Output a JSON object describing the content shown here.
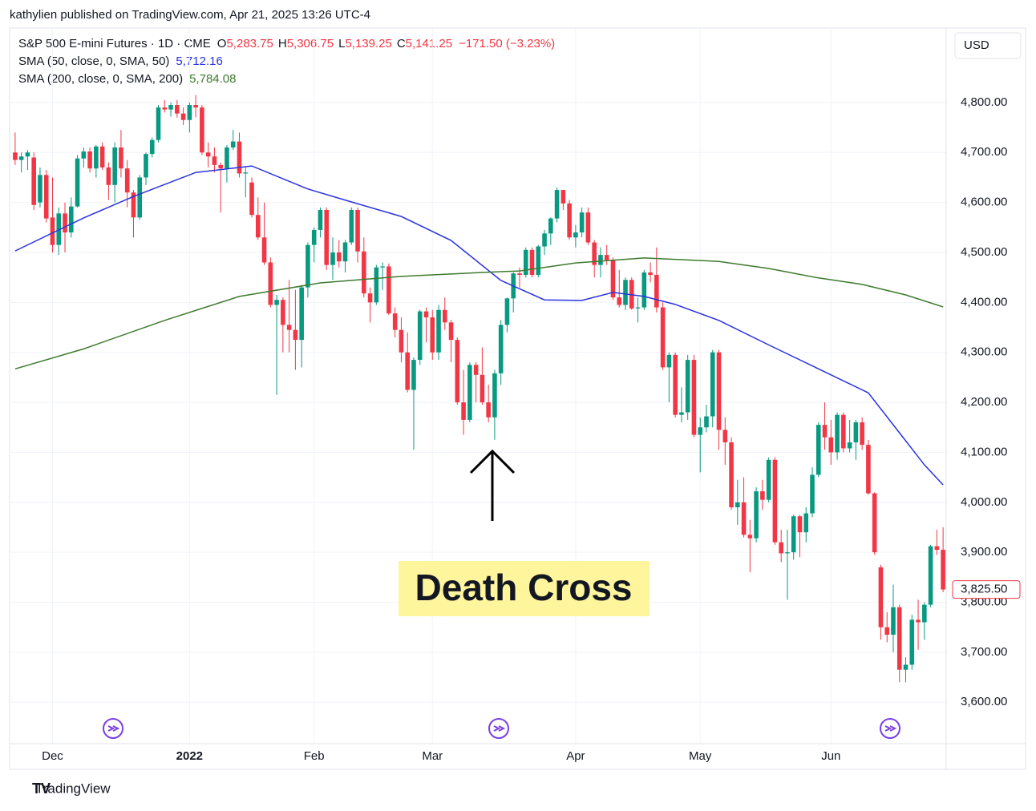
{
  "header": {
    "publisher": "kathylien published on TradingView.com, Apr 21, 2025 13:26 UTC-4"
  },
  "legend": {
    "symbol": "S&P 500 E-mini Futures · 1D · CME",
    "o_label": "O",
    "o": "5,283.75",
    "h_label": "H",
    "h": "5,306.75",
    "l_label": "L",
    "l": "5,139.25",
    "c_label": "C",
    "c": "5,141.25",
    "change": "−171.50 (−3.23%)",
    "sma50_label": "SMA (50, close, 0, SMA, 50)",
    "sma50_value": "5,712.16",
    "sma200_label": "SMA (200, close, 0, SMA, 200)",
    "sma200_value": "5,784.08"
  },
  "currency": "USD",
  "footer": "TradingView",
  "chart_data": {
    "type": "candlestick",
    "annotation": "Death Cross",
    "up_color": "#089981",
    "down_color": "#f23645",
    "ylim": [
      3517,
      4949
    ],
    "yticks": [
      {
        "value": 3600,
        "label": "3,600.00"
      },
      {
        "value": 3700,
        "label": "3,700.00"
      },
      {
        "value": 3800,
        "label": "3,800.00"
      },
      {
        "value": 3900,
        "label": "3,900.00"
      },
      {
        "value": 4000,
        "label": "4,000.00"
      },
      {
        "value": 4100,
        "label": "4,100.00"
      },
      {
        "value": 4200,
        "label": "4,200.00"
      },
      {
        "value": 4300,
        "label": "4,300.00"
      },
      {
        "value": 4400,
        "label": "4,400.00"
      },
      {
        "value": 4500,
        "label": "4,500.00"
      },
      {
        "value": 4600,
        "label": "4,600.00"
      },
      {
        "value": 4700,
        "label": "4,700.00"
      },
      {
        "value": 4800,
        "label": "4,800.00"
      }
    ],
    "xticks": [
      {
        "value": 6,
        "label": "Dec"
      },
      {
        "value": 28,
        "label": "2022"
      },
      {
        "value": 48,
        "label": "Feb"
      },
      {
        "value": 67,
        "label": "Mar"
      },
      {
        "value": 90,
        "label": "Apr"
      },
      {
        "value": 110,
        "label": "May"
      },
      {
        "value": 131,
        "label": "Jun"
      }
    ],
    "last_price": {
      "value": 3825.5,
      "label": "3,825.50"
    },
    "ohlc": [
      [
        4700,
        4740,
        4675,
        4685
      ],
      [
        4685,
        4700,
        4660,
        4692
      ],
      [
        4692,
        4705,
        4665,
        4700
      ],
      [
        4690,
        4700,
        4585,
        4595
      ],
      [
        4600,
        4670,
        4590,
        4655
      ],
      [
        4655,
        4665,
        4560,
        4568
      ],
      [
        4570,
        4650,
        4500,
        4515
      ],
      [
        4515,
        4590,
        4495,
        4578
      ],
      [
        4578,
        4600,
        4500,
        4540
      ],
      [
        4540,
        4610,
        4530,
        4592
      ],
      [
        4592,
        4695,
        4590,
        4688
      ],
      [
        4688,
        4710,
        4670,
        4702
      ],
      [
        4702,
        4710,
        4660,
        4668
      ],
      [
        4668,
        4715,
        4650,
        4712
      ],
      [
        4712,
        4720,
        4665,
        4670
      ],
      [
        4670,
        4680,
        4605,
        4635
      ],
      [
        4635,
        4720,
        4600,
        4710
      ],
      [
        4710,
        4745,
        4650,
        4668
      ],
      [
        4668,
        4685,
        4590,
        4620
      ],
      [
        4620,
        4625,
        4530,
        4570
      ],
      [
        4570,
        4655,
        4565,
        4650
      ],
      [
        4650,
        4700,
        4635,
        4697
      ],
      [
        4697,
        4730,
        4690,
        4725
      ],
      [
        4725,
        4795,
        4720,
        4790
      ],
      [
        4790,
        4805,
        4780,
        4786
      ],
      [
        4786,
        4800,
        4772,
        4795
      ],
      [
        4795,
        4805,
        4770,
        4778
      ],
      [
        4778,
        4790,
        4755,
        4765
      ],
      [
        4765,
        4800,
        4740,
        4795
      ],
      [
        4795,
        4815,
        4770,
        4790
      ],
      [
        4790,
        4795,
        4695,
        4700
      ],
      [
        4700,
        4720,
        4670,
        4692
      ],
      [
        4692,
        4710,
        4660,
        4675
      ],
      [
        4675,
        4680,
        4580,
        4668
      ],
      [
        4668,
        4715,
        4640,
        4710
      ],
      [
        4710,
        4745,
        4705,
        4722
      ],
      [
        4722,
        4740,
        4650,
        4658
      ],
      [
        4658,
        4670,
        4610,
        4660
      ],
      [
        4640,
        4650,
        4570,
        4575
      ],
      [
        4575,
        4610,
        4525,
        4530
      ],
      [
        4530,
        4600,
        4475,
        4480
      ],
      [
        4480,
        4490,
        4390,
        4395
      ],
      [
        4395,
        4415,
        4215,
        4405
      ],
      [
        4405,
        4410,
        4300,
        4355
      ],
      [
        4355,
        4445,
        4300,
        4345
      ],
      [
        4345,
        4425,
        4265,
        4325
      ],
      [
        4325,
        4435,
        4270,
        4430
      ],
      [
        4430,
        4520,
        4410,
        4515
      ],
      [
        4515,
        4550,
        4480,
        4545
      ],
      [
        4545,
        4590,
        4530,
        4585
      ],
      [
        4585,
        4590,
        4465,
        4475
      ],
      [
        4475,
        4530,
        4445,
        4500
      ],
      [
        4500,
        4525,
        4470,
        4482
      ],
      [
        4482,
        4525,
        4460,
        4520
      ],
      [
        4520,
        4590,
        4515,
        4585
      ],
      [
        4585,
        4590,
        4480,
        4502
      ],
      [
        4502,
        4530,
        4410,
        4418
      ],
      [
        4418,
        4430,
        4360,
        4400
      ],
      [
        4400,
        4475,
        4395,
        4470
      ],
      [
        4470,
        4480,
        4425,
        4472
      ],
      [
        4472,
        4478,
        4375,
        4378
      ],
      [
        4378,
        4390,
        4330,
        4345
      ],
      [
        4345,
        4370,
        4280,
        4300
      ],
      [
        4300,
        4340,
        4220,
        4225
      ],
      [
        4225,
        4290,
        4105,
        4285
      ],
      [
        4285,
        4385,
        4275,
        4382
      ],
      [
        4382,
        4390,
        4320,
        4370
      ],
      [
        4370,
        4385,
        4285,
        4300
      ],
      [
        4300,
        4395,
        4285,
        4385
      ],
      [
        4385,
        4410,
        4345,
        4360
      ],
      [
        4360,
        4365,
        4280,
        4325
      ],
      [
        4325,
        4330,
        4195,
        4200
      ],
      [
        4200,
        4265,
        4135,
        4165
      ],
      [
        4165,
        4280,
        4160,
        4275
      ],
      [
        4275,
        4280,
        4200,
        4255
      ],
      [
        4255,
        4310,
        4195,
        4200
      ],
      [
        4200,
        4235,
        4160,
        4170
      ],
      [
        4170,
        4265,
        4125,
        4258
      ],
      [
        4258,
        4365,
        4235,
        4355
      ],
      [
        4355,
        4410,
        4340,
        4408
      ],
      [
        4408,
        4460,
        4380,
        4458
      ],
      [
        4458,
        4470,
        4430,
        4455
      ],
      [
        4455,
        4510,
        4450,
        4505
      ],
      [
        4505,
        4510,
        4450,
        4455
      ],
      [
        4455,
        4515,
        4450,
        4512
      ],
      [
        4512,
        4545,
        4495,
        4538
      ],
      [
        4538,
        4570,
        4515,
        4568
      ],
      [
        4568,
        4630,
        4560,
        4625
      ],
      [
        4625,
        4625,
        4585,
        4598
      ],
      [
        4598,
        4605,
        4525,
        4530
      ],
      [
        4530,
        4555,
        4510,
        4540
      ],
      [
        4540,
        4590,
        4530,
        4580
      ],
      [
        4580,
        4590,
        4515,
        4520
      ],
      [
        4520,
        4525,
        4450,
        4475
      ],
      [
        4475,
        4510,
        4450,
        4495
      ],
      [
        4495,
        4515,
        4475,
        4485
      ],
      [
        4485,
        4490,
        4405,
        4410
      ],
      [
        4410,
        4465,
        4390,
        4395
      ],
      [
        4395,
        4450,
        4385,
        4445
      ],
      [
        4445,
        4450,
        4385,
        4388
      ],
      [
        4388,
        4410,
        4360,
        4390
      ],
      [
        4390,
        4465,
        4385,
        4460
      ],
      [
        4460,
        4480,
        4440,
        4455
      ],
      [
        4455,
        4510,
        4380,
        4390
      ],
      [
        4390,
        4400,
        4265,
        4270
      ],
      [
        4270,
        4300,
        4200,
        4295
      ],
      [
        4295,
        4300,
        4170,
        4175
      ],
      [
        4175,
        4230,
        4160,
        4180
      ],
      [
        4180,
        4295,
        4165,
        4285
      ],
      [
        4285,
        4295,
        4130,
        4135
      ],
      [
        4135,
        4170,
        4060,
        4150
      ],
      [
        4150,
        4195,
        4140,
        4172
      ],
      [
        4172,
        4305,
        4150,
        4300
      ],
      [
        4300,
        4305,
        4105,
        4145
      ],
      [
        4145,
        4170,
        4075,
        4120
      ],
      [
        4120,
        4130,
        3985,
        3990
      ],
      [
        3990,
        4045,
        3955,
        4000
      ],
      [
        4000,
        4050,
        3930,
        3935
      ],
      [
        3935,
        3965,
        3860,
        3928
      ],
      [
        3928,
        4030,
        3920,
        4022
      ],
      [
        4022,
        4045,
        3985,
        4005
      ],
      [
        4005,
        4090,
        4000,
        4085
      ],
      [
        4085,
        4090,
        3915,
        3920
      ],
      [
        3920,
        3945,
        3880,
        3898
      ],
      [
        3898,
        3945,
        3805,
        3900
      ],
      [
        3900,
        3975,
        3885,
        3972
      ],
      [
        3972,
        3975,
        3890,
        3940
      ],
      [
        3940,
        3990,
        3920,
        3978
      ],
      [
        3978,
        4070,
        3970,
        4055
      ],
      [
        4055,
        4160,
        4050,
        4155
      ],
      [
        4155,
        4200,
        4105,
        4130
      ],
      [
        4130,
        4165,
        4075,
        4100
      ],
      [
        4100,
        4180,
        4085,
        4175
      ],
      [
        4175,
        4180,
        4100,
        4108
      ],
      [
        4108,
        4165,
        4100,
        4120
      ],
      [
        4120,
        4165,
        4085,
        4160
      ],
      [
        4160,
        4170,
        4105,
        4115
      ],
      [
        4115,
        4125,
        4015,
        4018
      ],
      [
        4018,
        4020,
        3895,
        3900
      ],
      [
        3870,
        3875,
        3725,
        3750
      ],
      [
        3750,
        3780,
        3720,
        3735
      ],
      [
        3735,
        3835,
        3700,
        3790
      ],
      [
        3790,
        3795,
        3640,
        3665
      ],
      [
        3665,
        3690,
        3640,
        3675
      ],
      [
        3675,
        3775,
        3665,
        3765
      ],
      [
        3765,
        3805,
        3705,
        3760
      ],
      [
        3760,
        3800,
        3725,
        3795
      ],
      [
        3795,
        3915,
        3790,
        3912
      ],
      [
        3912,
        3945,
        3895,
        3905
      ],
      [
        3905,
        3950,
        3820,
        3825.5
      ]
    ],
    "series": [
      {
        "name": "SMA 50",
        "color": "#2932e1",
        "x": [
          0,
          11,
          19,
          29,
          38,
          47,
          54,
          62,
          70,
          78,
          85,
          91,
          96,
          101,
          106,
          113,
          121,
          129,
          137,
          142,
          146,
          149
        ],
        "values": [
          4503,
          4569,
          4612,
          4660,
          4673,
          4627,
          4601,
          4572,
          4524,
          4444,
          4405,
          4404,
          4420,
          4412,
          4396,
          4364,
          4315,
          4267,
          4219,
          4139,
          4075,
          4035
        ]
      },
      {
        "name": "SMA 200",
        "color": "#3d7a2e",
        "x": [
          0,
          11,
          24,
          36,
          49,
          62,
          75,
          81,
          90,
          101,
          113,
          121,
          129,
          136,
          143,
          149
        ],
        "values": [
          4267,
          4307,
          4364,
          4412,
          4439,
          4452,
          4460,
          4463,
          4479,
          4489,
          4482,
          4468,
          4449,
          4436,
          4415,
          4391
        ]
      }
    ]
  }
}
